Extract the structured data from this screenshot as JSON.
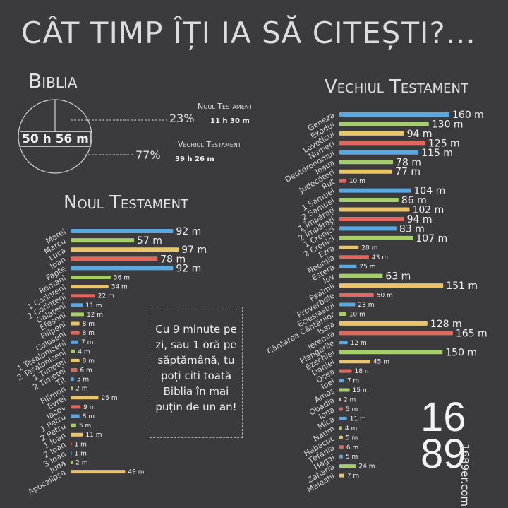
{
  "title": "CÂT TIMP ÎȚI IA SĂ CITEȘTI?...",
  "biblia": {
    "heading": "Biblia",
    "total": "50 h 56 m",
    "nt_label": "Noul Testament",
    "nt_pct": "23%",
    "nt_time": "11 h 30 m",
    "vt_label": "Vechiul Testament",
    "vt_pct": "77%",
    "vt_time": "39 h 26 m"
  },
  "callout": "Cu 9 minute pe zi, sau 1 oră pe săptămână, tu poți citi toată Biblia în mai puțin de un an!",
  "logo": {
    "top": "16",
    "bottom": "89",
    "site": "1689er.com"
  },
  "colors": [
    "#5aa8e0",
    "#a6cf6a",
    "#e8c46a",
    "#e0685f"
  ],
  "chart_data": [
    {
      "type": "pie",
      "title": "Biblia",
      "labels": [
        "Noul Testament",
        "Vechiul Testament"
      ],
      "values": [
        23,
        77
      ],
      "display": [
        "11 h 30 m",
        "39 h 26 m"
      ],
      "total": "50 h 56 m"
    },
    {
      "type": "bar",
      "title": "Noul Testament",
      "categories": [
        "Matei",
        "Marcu",
        "Luca",
        "Ioan",
        "Fapte",
        "Romani",
        "1 Corinteni",
        "2 Corinteni",
        "Galateni",
        "Efeseni",
        "Filipeni",
        "Coloseni",
        "1 Tesaloniceni",
        "2 Tesaloniceni",
        "1 Timotei",
        "2 Timotei",
        "Tit",
        "Filimon",
        "Evrei",
        "Iacov",
        "1 Petru",
        "2 Petru",
        "1 Ioan",
        "2 Ioan",
        "3 Ioan",
        "Iuda",
        "Apocalipsa"
      ],
      "values": [
        92,
        57,
        97,
        78,
        92,
        36,
        34,
        22,
        11,
        12,
        8,
        8,
        7,
        4,
        8,
        6,
        3,
        2,
        25,
        9,
        8,
        5,
        11,
        1,
        1,
        2,
        49
      ],
      "unit": "m"
    },
    {
      "type": "bar",
      "title": "Vechiul Testament",
      "categories": [
        "Geneza",
        "Exodul",
        "Leveticul",
        "Numeri",
        "Deuteronomul",
        "Iosua",
        "Judecători",
        "Rut",
        "1 Samuel",
        "2 Samuel",
        "1 Împărați",
        "2 Împărați",
        "1 Cronici",
        "2 Cronici",
        "Ezra",
        "Neemia",
        "Estera",
        "Iov",
        "Psalmii",
        "Proverbele",
        "Eclesiastul",
        "Cântarea Cântărilor",
        "Isaia",
        "Ieremia",
        "Plangerile",
        "Ezechiel",
        "Daniel",
        "Osea",
        "Ioel",
        "Amos",
        "Obadia",
        "Iona",
        "Mica",
        "Naum",
        "Habacuc",
        "Țefania",
        "Hagai",
        "Zaharia",
        "Maleahi"
      ],
      "values": [
        160,
        130,
        94,
        125,
        115,
        78,
        77,
        10,
        104,
        86,
        102,
        94,
        83,
        107,
        28,
        43,
        25,
        63,
        151,
        50,
        23,
        10,
        128,
        165,
        12,
        150,
        45,
        18,
        7,
        15,
        2,
        5,
        11,
        4,
        5,
        6,
        5,
        24,
        7
      ],
      "unit": "m"
    }
  ]
}
